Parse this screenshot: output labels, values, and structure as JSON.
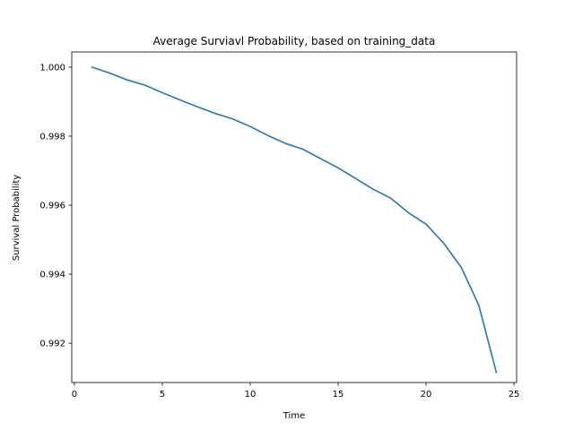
{
  "chart_data": {
    "type": "line",
    "title": "Average Surviavl Probability, based on training_data",
    "xlabel": "Time",
    "ylabel": "Survival Probability",
    "xlim": [
      -0.15,
      25.15
    ],
    "ylim": [
      0.99086,
      1.00044
    ],
    "xticks": [
      0,
      5,
      10,
      15,
      20,
      25
    ],
    "xtick_labels": [
      "0",
      "5",
      "10",
      "15",
      "20",
      "25"
    ],
    "yticks": [
      0.992,
      0.994,
      0.996,
      0.998,
      1.0
    ],
    "ytick_labels": [
      "0.992",
      "0.994",
      "0.996",
      "0.998",
      "1.000"
    ],
    "grid": false,
    "series": [
      {
        "color": "#1f77b4",
        "x": [
          1,
          2,
          3,
          4,
          5,
          6,
          7,
          8,
          9,
          10,
          11,
          12,
          13,
          14,
          15,
          16,
          17,
          18,
          19,
          20,
          21,
          22,
          23,
          24
        ],
        "y": [
          1.0,
          0.99983,
          0.99963,
          0.99948,
          0.99926,
          0.99905,
          0.99885,
          0.99866,
          0.9985,
          0.99828,
          0.99802,
          0.99779,
          0.99762,
          0.99735,
          0.99708,
          0.99677,
          0.99646,
          0.9962,
          0.99578,
          0.99545,
          0.9949,
          0.9942,
          0.9931,
          0.99115
        ]
      }
    ]
  }
}
